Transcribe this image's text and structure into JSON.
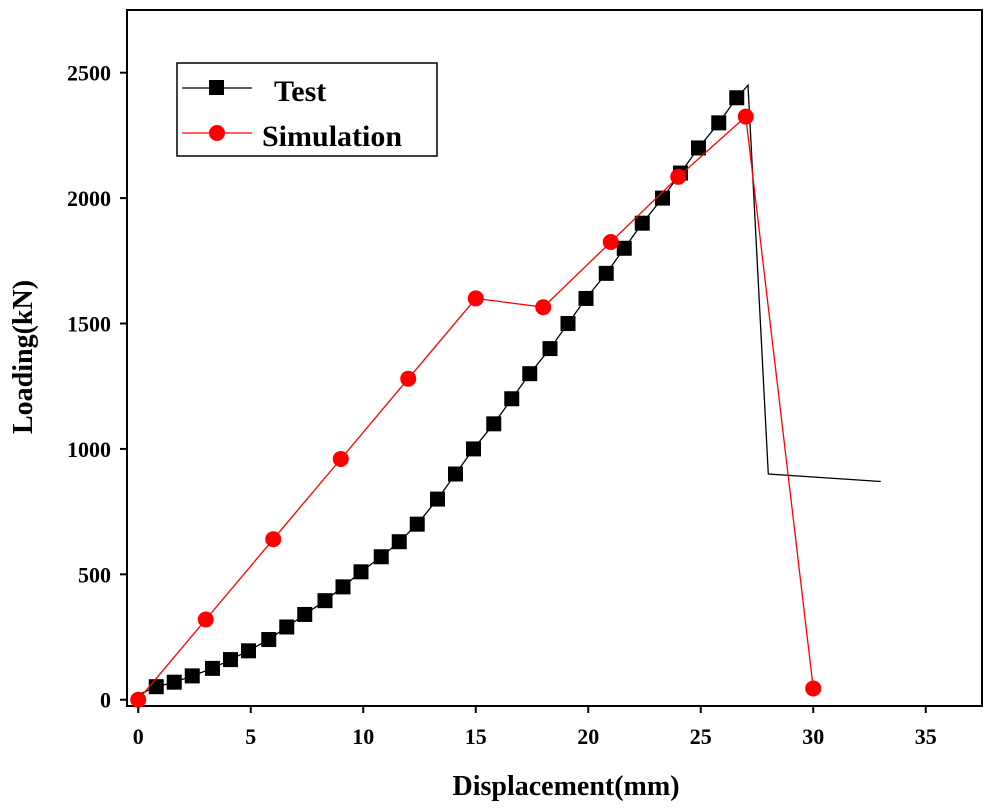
{
  "chart_data": {
    "type": "line",
    "title": "",
    "xlabel": "Displacement(mm)",
    "ylabel": "Loading(kN)",
    "xlim": [
      -0.5,
      37.5
    ],
    "ylim": [
      -25,
      2750
    ],
    "xticks": [
      0,
      5,
      10,
      15,
      20,
      25,
      30,
      35
    ],
    "yticks": [
      0,
      500,
      1000,
      1500,
      2000,
      2500
    ],
    "legend_position": "top-left",
    "series": [
      {
        "name": "Test",
        "color": "#000000",
        "marker": "square",
        "line_points": [
          [
            0,
            20
          ],
          [
            0.8,
            52
          ],
          [
            1.6,
            70
          ],
          [
            2.4,
            95
          ],
          [
            3.3,
            125
          ],
          [
            4.1,
            160
          ],
          [
            4.9,
            195
          ],
          [
            5.8,
            240
          ],
          [
            6.6,
            290
          ],
          [
            7.4,
            340
          ],
          [
            8.3,
            395
          ],
          [
            9.1,
            450
          ],
          [
            9.9,
            510
          ],
          [
            10.8,
            570
          ],
          [
            11.6,
            630
          ],
          [
            12.4,
            700
          ],
          [
            13.3,
            800
          ],
          [
            14.1,
            900
          ],
          [
            14.9,
            1000
          ],
          [
            15.8,
            1100
          ],
          [
            16.6,
            1200
          ],
          [
            17.4,
            1300
          ],
          [
            18.3,
            1400
          ],
          [
            19.1,
            1500
          ],
          [
            19.9,
            1600
          ],
          [
            20.8,
            1700
          ],
          [
            21.6,
            1800
          ],
          [
            22.4,
            1900
          ],
          [
            23.3,
            2000
          ],
          [
            24.1,
            2100
          ],
          [
            24.9,
            2200
          ],
          [
            25.8,
            2300
          ],
          [
            26.6,
            2400
          ],
          [
            27.1,
            2450
          ],
          [
            28.0,
            900
          ],
          [
            33.0,
            870
          ]
        ],
        "marker_points": [
          [
            0.8,
            52
          ],
          [
            1.6,
            70
          ],
          [
            2.4,
            95
          ],
          [
            3.3,
            125
          ],
          [
            4.1,
            160
          ],
          [
            4.9,
            195
          ],
          [
            5.8,
            240
          ],
          [
            6.6,
            290
          ],
          [
            7.4,
            340
          ],
          [
            8.3,
            395
          ],
          [
            9.1,
            450
          ],
          [
            9.9,
            510
          ],
          [
            10.8,
            570
          ],
          [
            11.6,
            630
          ],
          [
            12.4,
            700
          ],
          [
            13.3,
            800
          ],
          [
            14.1,
            900
          ],
          [
            14.9,
            1000
          ],
          [
            15.8,
            1100
          ],
          [
            16.6,
            1200
          ],
          [
            17.4,
            1300
          ],
          [
            18.3,
            1400
          ],
          [
            19.1,
            1500
          ],
          [
            19.9,
            1600
          ],
          [
            20.8,
            1700
          ],
          [
            21.6,
            1800
          ],
          [
            22.4,
            1900
          ],
          [
            23.3,
            2000
          ],
          [
            24.1,
            2100
          ],
          [
            24.9,
            2200
          ],
          [
            25.8,
            2300
          ],
          [
            26.6,
            2400
          ]
        ]
      },
      {
        "name": "Simulation",
        "color": "#ff0000",
        "marker": "circle",
        "line_points": [
          [
            0,
            0
          ],
          [
            3,
            320
          ],
          [
            6,
            640
          ],
          [
            9,
            960
          ],
          [
            12,
            1280
          ],
          [
            15,
            1600
          ],
          [
            18,
            1565
          ],
          [
            21,
            1825
          ],
          [
            24,
            2085
          ],
          [
            27,
            2325
          ],
          [
            30,
            45
          ]
        ],
        "marker_points": [
          [
            0,
            0
          ],
          [
            3,
            320
          ],
          [
            6,
            640
          ],
          [
            9,
            960
          ],
          [
            12,
            1280
          ],
          [
            15,
            1600
          ],
          [
            18,
            1565
          ],
          [
            21,
            1825
          ],
          [
            24,
            2085
          ],
          [
            27,
            2325
          ],
          [
            30,
            45
          ]
        ]
      }
    ]
  }
}
